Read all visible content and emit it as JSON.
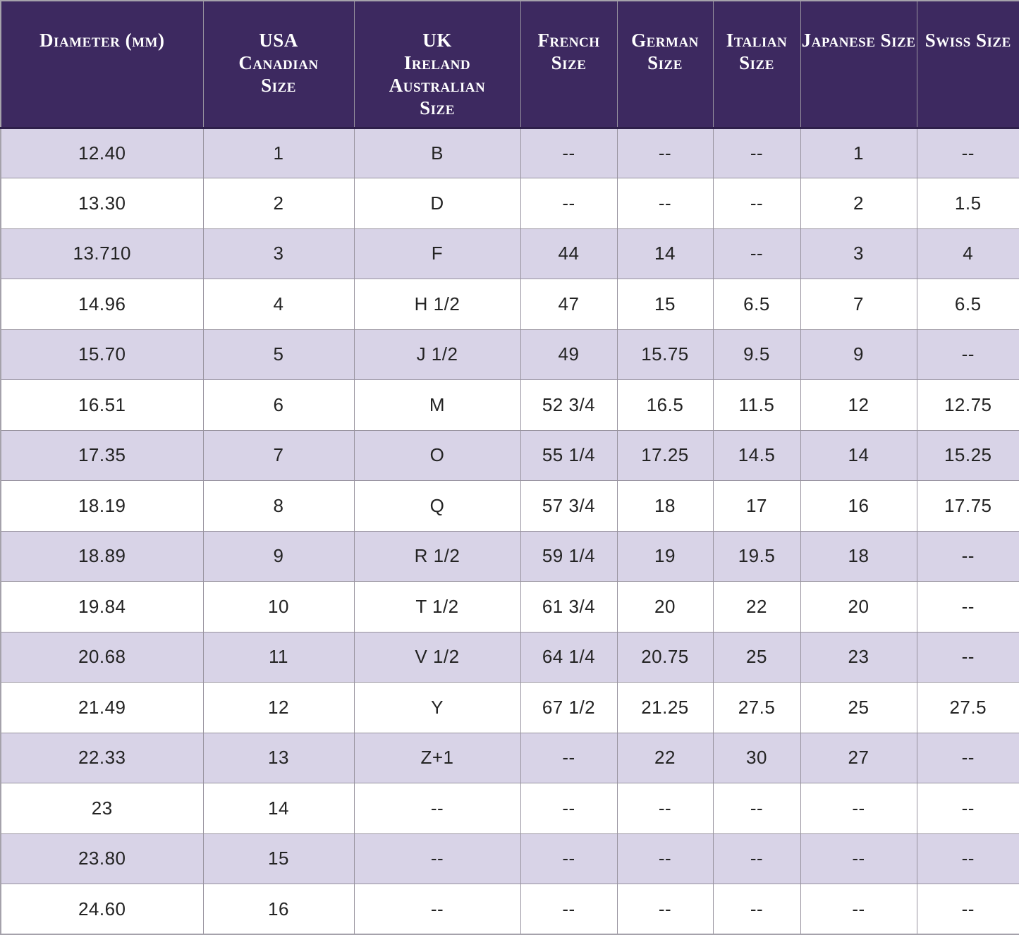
{
  "colors": {
    "header_bg": "#3D2960",
    "header_text": "#FFFFFF",
    "row_alt_bg": "#D8D3E7",
    "row_bg": "#FFFFFF",
    "border": "#98939F",
    "cell_text": "#232323"
  },
  "chart_data": {
    "type": "table",
    "title": "",
    "columns": [
      "Diameter (mm)",
      "USA\nCanadian\nSize",
      "UK\nIreland\nAustralian\nSize",
      "French\nSize",
      "German\nSize",
      "Italian\nSize",
      "Japanese Size",
      "Swiss Size"
    ],
    "rows": [
      [
        "12.40",
        "1",
        "B",
        "--",
        "--",
        "--",
        "1",
        "--"
      ],
      [
        "13.30",
        "2",
        "D",
        "--",
        "--",
        "--",
        "2",
        "1.5"
      ],
      [
        "13.710",
        "3",
        "F",
        "44",
        "14",
        "--",
        "3",
        "4"
      ],
      [
        "14.96",
        "4",
        "H 1/2",
        "47",
        "15",
        "6.5",
        "7",
        "6.5"
      ],
      [
        "15.70",
        "5",
        "J 1/2",
        "49",
        "15.75",
        "9.5",
        "9",
        "--"
      ],
      [
        "16.51",
        "6",
        "M",
        "52 3/4",
        "16.5",
        "11.5",
        "12",
        "12.75"
      ],
      [
        "17.35",
        "7",
        "O",
        "55 1/4",
        "17.25",
        "14.5",
        "14",
        "15.25"
      ],
      [
        "18.19",
        "8",
        "Q",
        "57 3/4",
        "18",
        "17",
        "16",
        "17.75"
      ],
      [
        "18.89",
        "9",
        "R 1/2",
        "59 1/4",
        "19",
        "19.5",
        "18",
        "--"
      ],
      [
        "19.84",
        "10",
        "T 1/2",
        "61 3/4",
        "20",
        "22",
        "20",
        "--"
      ],
      [
        "20.68",
        "11",
        "V 1/2",
        "64 1/4",
        "20.75",
        "25",
        "23",
        "--"
      ],
      [
        "21.49",
        "12",
        "Y",
        "67 1/2",
        "21.25",
        "27.5",
        "25",
        "27.5"
      ],
      [
        "22.33",
        "13",
        "Z+1",
        "--",
        "22",
        "30",
        "27",
        "--"
      ],
      [
        "23",
        "14",
        "--",
        "--",
        "--",
        "--",
        "--",
        "--"
      ],
      [
        "23.80",
        "15",
        "--",
        "--",
        "--",
        "--",
        "--",
        "--"
      ],
      [
        "24.60",
        "16",
        "--",
        "--",
        "--",
        "--",
        "--",
        "--"
      ]
    ]
  }
}
